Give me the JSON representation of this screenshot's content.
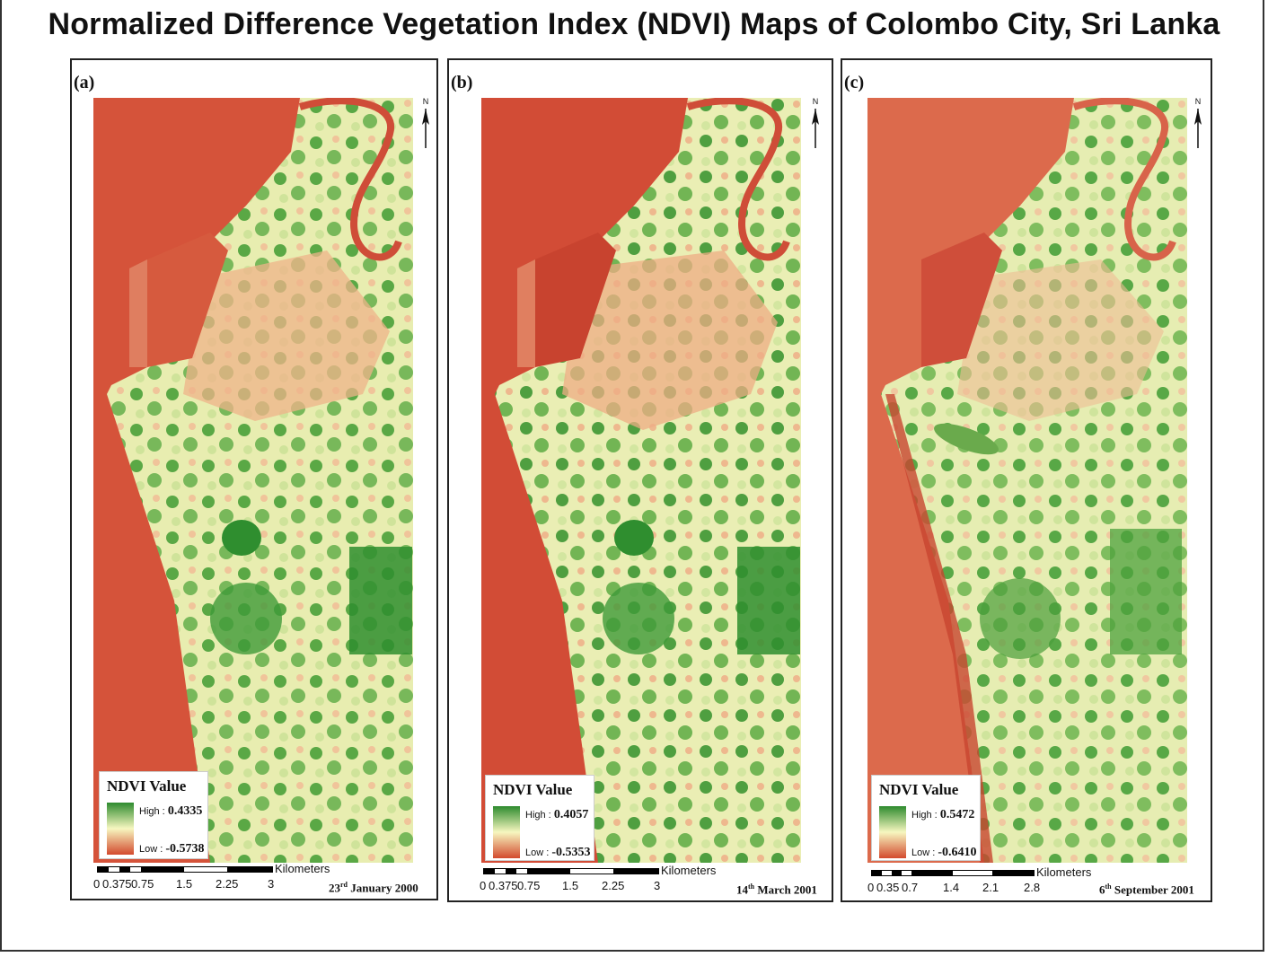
{
  "title": "Normalized Difference Vegetation Index (NDVI) Maps of Colombo City, Sri Lanka",
  "colors": {
    "water": "#d5533a",
    "low": "#d34a2e",
    "mid": "#f7f7c0",
    "high": "#2e8b2e"
  },
  "panels": [
    {
      "label": "(a)",
      "north": "N",
      "legend_title": "NDVI Value",
      "high_label": "High :",
      "high_value": "0.4335",
      "low_label": "Low :",
      "low_value": "-0.5738",
      "scale_unit": "Kilometers",
      "scale_ticks": [
        "0",
        "0.375",
        "0.75",
        "1.5",
        "2.25",
        "3"
      ],
      "date_day": "23",
      "date_suffix": "rd",
      "date_rest": " January 2000"
    },
    {
      "label": "(b)",
      "north": "N",
      "legend_title": "NDVI Value",
      "high_label": "High :",
      "high_value": "0.4057",
      "low_label": "Low :",
      "low_value": "-0.5353",
      "scale_unit": "Kilometers",
      "scale_ticks": [
        "0",
        "0.375",
        "0.75",
        "1.5",
        "2.25",
        "3"
      ],
      "date_day": "14",
      "date_suffix": "th",
      "date_rest": " March 2001"
    },
    {
      "label": "(c)",
      "north": "N",
      "legend_title": "NDVI Value",
      "high_label": "High :",
      "high_value": "0.5472",
      "low_label": "Low :",
      "low_value": "-0.6410",
      "scale_unit": "Kilometers",
      "scale_ticks": [
        "0",
        "0.35",
        "0.7",
        "1.4",
        "2.1",
        "2.8"
      ],
      "date_day": "6",
      "date_suffix": "th",
      "date_rest": " September 2001"
    }
  ]
}
